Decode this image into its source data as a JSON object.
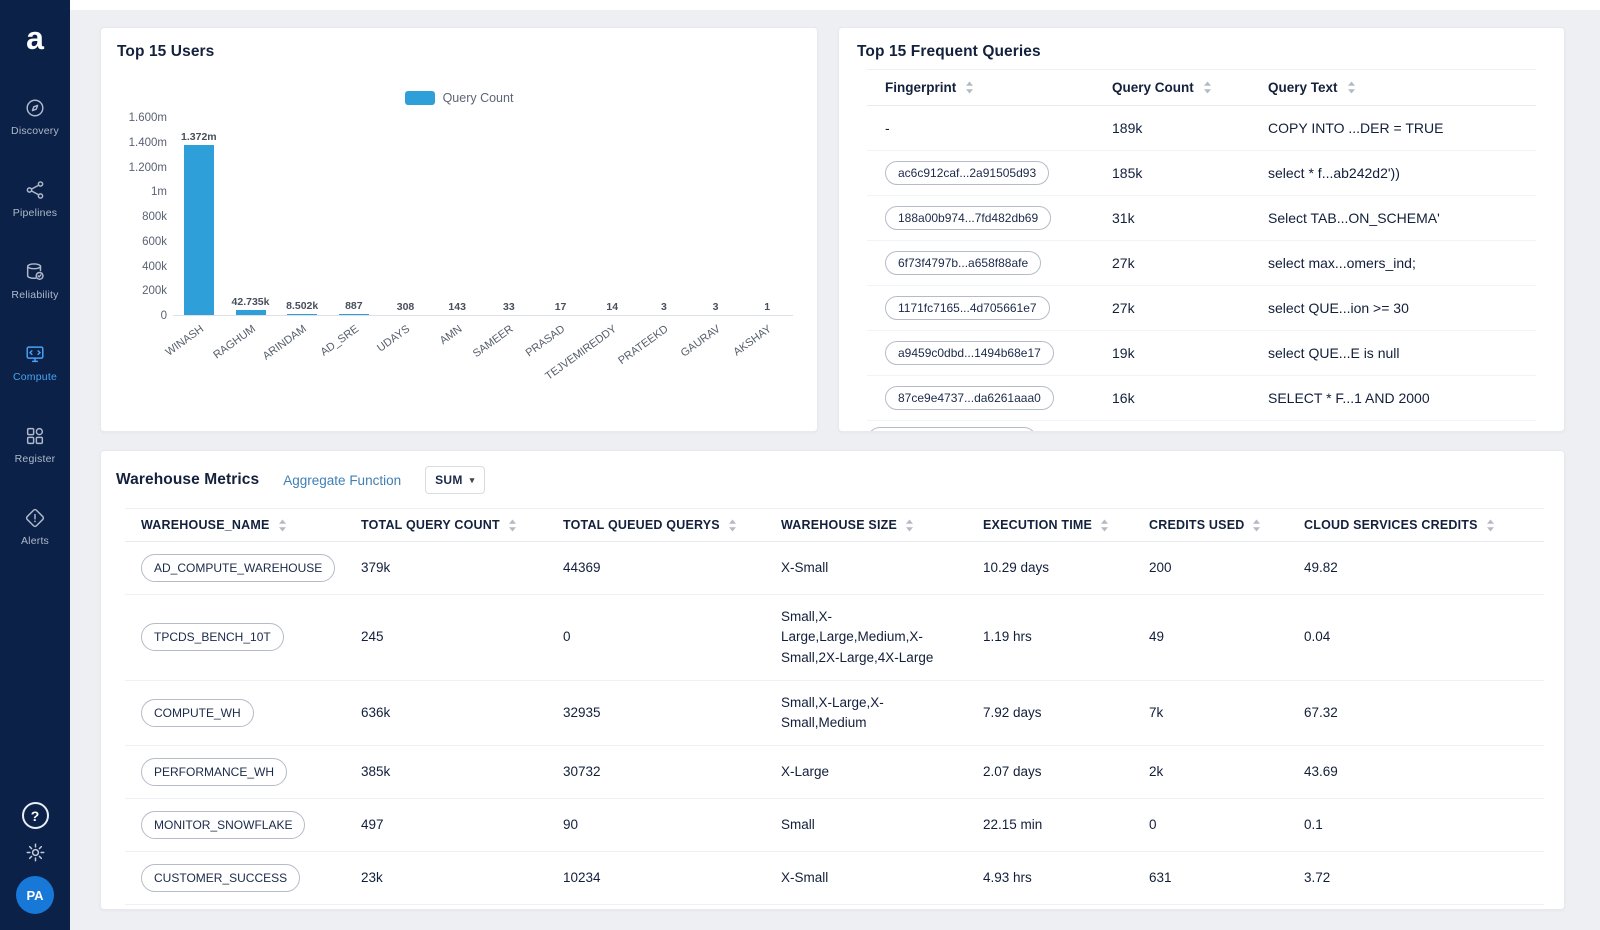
{
  "sidebar": {
    "logo": "a",
    "items": [
      {
        "label": "Discovery",
        "icon": "discovery-icon",
        "active": false
      },
      {
        "label": "Pipelines",
        "icon": "pipelines-icon",
        "active": false
      },
      {
        "label": "Reliability",
        "icon": "reliability-icon",
        "active": false
      },
      {
        "label": "Compute",
        "icon": "compute-icon",
        "active": true
      },
      {
        "label": "Register",
        "icon": "register-icon",
        "active": false
      },
      {
        "label": "Alerts",
        "icon": "alerts-icon",
        "active": false
      }
    ],
    "help": "?",
    "avatar": "PA"
  },
  "colors": {
    "sidebar": "#0c2147",
    "accent": "#2E9FD9",
    "active_nav": "#47a3f6"
  },
  "top_users": {
    "title": "Top 15 Users",
    "chart_data": {
      "type": "bar",
      "title": "Top 15 Users",
      "categories": [
        "WINASH",
        "RAGHUM",
        "ARINDAM",
        "AD_SRE",
        "UDAYS",
        "AMN",
        "SAMEER",
        "PRASAD",
        "TEJVEMIREDDY",
        "PRATEEKD",
        "GAURAV",
        "AKSHAY"
      ],
      "series": [
        {
          "name": "Query Count",
          "values": [
            1372000,
            42735,
            8502,
            887,
            308,
            143,
            33,
            17,
            14,
            3,
            3,
            1
          ]
        }
      ],
      "value_labels": [
        "1.372m",
        "42.735k",
        "8.502k",
        "887",
        "308",
        "143",
        "33",
        "17",
        "14",
        "3",
        "3",
        "1"
      ],
      "y_ticks": [
        "1.600m",
        "1.400m",
        "1.200m",
        "1m",
        "800k",
        "600k",
        "400k",
        "200k",
        "0"
      ],
      "ylim": [
        0,
        1600000
      ],
      "grid": false,
      "legend_position": "top",
      "legend_label": "Query Count",
      "bar_color": "#2E9FD9"
    }
  },
  "frequent_queries": {
    "title": "Top 15 Frequent Queries",
    "columns": [
      "Fingerprint",
      "Query Count",
      "Query Text"
    ],
    "rows": [
      {
        "fingerprint": "-",
        "pill": false,
        "count": "189k",
        "text": "COPY INTO ...DER = TRUE"
      },
      {
        "fingerprint": "ac6c912caf...2a91505d93",
        "pill": true,
        "count": "185k",
        "text": "select * f...ab242d2'))"
      },
      {
        "fingerprint": "188a00b974...7fd482db69",
        "pill": true,
        "count": "31k",
        "text": "Select TAB...ON_SCHEMA'"
      },
      {
        "fingerprint": "6f73f4797b...a658f88afe",
        "pill": true,
        "count": "27k",
        "text": "select max...omers_ind;"
      },
      {
        "fingerprint": "1171fc7165...4d705661e7",
        "pill": true,
        "count": "27k",
        "text": "select QUE...ion >= 30"
      },
      {
        "fingerprint": "a9459c0dbd...1494b68e17",
        "pill": true,
        "count": "19k",
        "text": "select QUE...E is null"
      },
      {
        "fingerprint": "87ce9e4737...da6261aaa0",
        "pill": true,
        "count": "16k",
        "text": "SELECT * F...1 AND 2000"
      }
    ]
  },
  "warehouse_metrics": {
    "title": "Warehouse Metrics",
    "aggregate_label": "Aggregate Function",
    "aggregate_value": "SUM",
    "columns": [
      "WAREHOUSE_NAME",
      "TOTAL QUERY COUNT",
      "TOTAL QUEUED QUERYS",
      "WAREHOUSE SIZE",
      "EXECUTION TIME",
      "CREDITS USED",
      "CLOUD SERVICES CREDITS"
    ],
    "rows": [
      {
        "name": "AD_COMPUTE_WAREHOUSE",
        "total_query_count": "379k",
        "total_queued": "44369",
        "size": "X-Small",
        "execution_time": "10.29 days",
        "credits_used": "200",
        "cloud_credits": "49.82"
      },
      {
        "name": "TPCDS_BENCH_10T",
        "total_query_count": "245",
        "total_queued": "0",
        "size": "Small,X-Large,Large,Medium,X-Small,2X-Large,4X-Large",
        "execution_time": "1.19 hrs",
        "credits_used": "49",
        "cloud_credits": "0.04"
      },
      {
        "name": "COMPUTE_WH",
        "total_query_count": "636k",
        "total_queued": "32935",
        "size": "Small,X-Large,X-Small,Medium",
        "execution_time": "7.92 days",
        "credits_used": "7k",
        "cloud_credits": "67.32"
      },
      {
        "name": "PERFORMANCE_WH",
        "total_query_count": "385k",
        "total_queued": "30732",
        "size": "X-Large",
        "execution_time": "2.07 days",
        "credits_used": "2k",
        "cloud_credits": "43.69"
      },
      {
        "name": "MONITOR_SNOWFLAKE",
        "total_query_count": "497",
        "total_queued": "90",
        "size": "Small",
        "execution_time": "22.15 min",
        "credits_used": "0",
        "cloud_credits": "0.1"
      },
      {
        "name": "CUSTOMER_SUCCESS",
        "total_query_count": "23k",
        "total_queued": "10234",
        "size": "X-Small",
        "execution_time": "4.93 hrs",
        "credits_used": "631",
        "cloud_credits": "3.72"
      }
    ]
  }
}
